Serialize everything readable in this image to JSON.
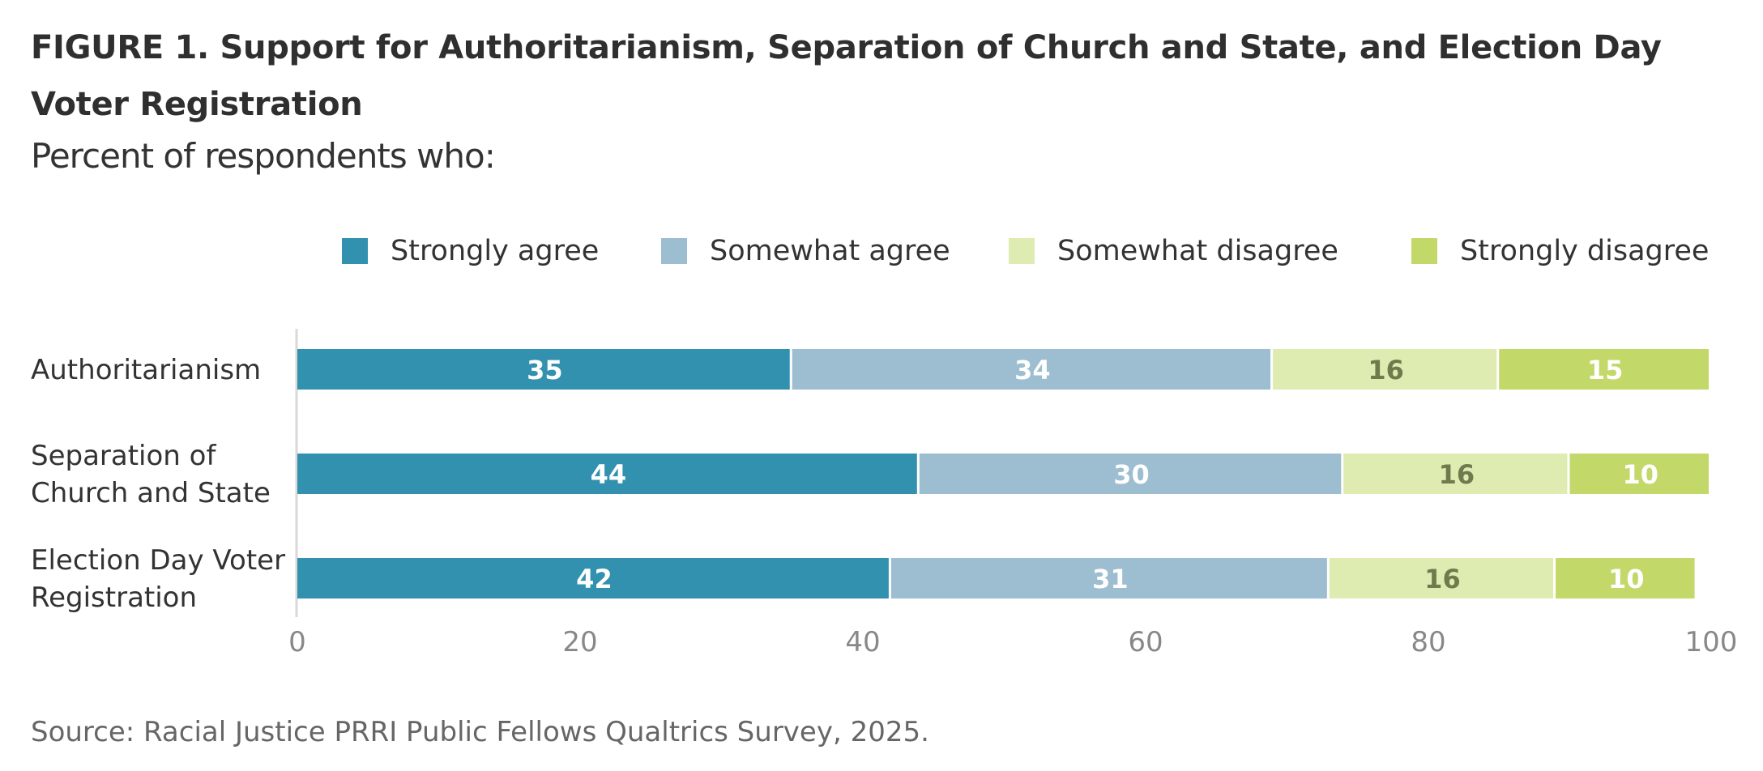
{
  "title": "FIGURE 1.  Support for Authoritarianism, Separation of Church and State, and Election Day Voter Registration",
  "subtitle": "Percent of respondents who:",
  "source": "Source: Racial Justice PRRI Public Fellows Qualtrics Survey, 2025.",
  "colors": {
    "strongly_agree": "#3391b0",
    "somewhat_agree": "#9dbdd0",
    "somewhat_disagree": "#deebb1",
    "strongly_disagree": "#c2d96a",
    "label_dark": "#6f7a4d",
    "label_light": "#ffffff",
    "axis": "#d9d9d9",
    "tick": "#888888"
  },
  "legend": [
    {
      "label": "Strongly agree",
      "color": "#3391b0"
    },
    {
      "label": "Somewhat agree",
      "color": "#9dbdd0"
    },
    {
      "label": "Somewhat disagree",
      "color": "#deebb1"
    },
    {
      "label": "Strongly disagree",
      "color": "#c2d96a"
    }
  ],
  "chart_data": {
    "type": "bar",
    "orientation": "horizontal",
    "stacked": true,
    "categories": [
      [
        "Authoritarianism"
      ],
      [
        "Separation of",
        "Church and State"
      ],
      [
        "Election Day Voter",
        "Registration"
      ]
    ],
    "series": [
      {
        "name": "Strongly agree",
        "values": [
          35,
          44,
          42
        ]
      },
      {
        "name": "Somewhat agree",
        "values": [
          34,
          30,
          31
        ]
      },
      {
        "name": "Somewhat disagree",
        "values": [
          16,
          16,
          16
        ]
      },
      {
        "name": "Strongly disagree",
        "values": [
          15,
          10,
          10
        ]
      }
    ],
    "xlim": [
      0,
      100
    ],
    "xticks": [
      0,
      20,
      40,
      60,
      80,
      100
    ],
    "grid": false,
    "legend_position": "top"
  }
}
